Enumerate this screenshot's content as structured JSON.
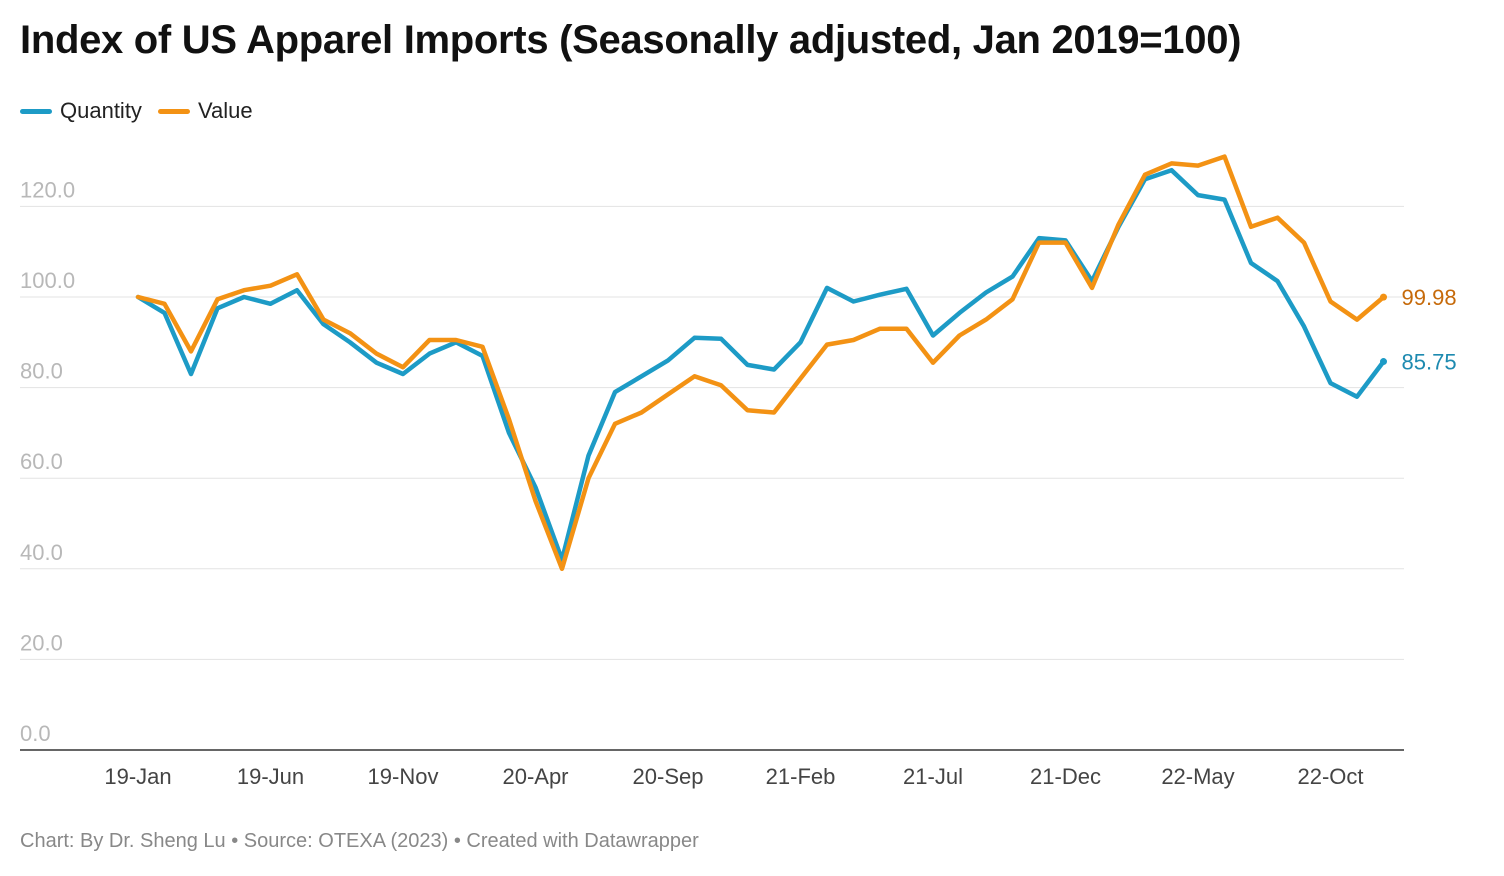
{
  "chart_data": {
    "type": "line",
    "title": "Index of US Apparel Imports (Seasonally adjusted, Jan 2019=100)",
    "xlabel": "",
    "ylabel": "",
    "ylim": [
      0,
      130
    ],
    "yticks": [
      "0.0",
      "20.0",
      "40.0",
      "60.0",
      "80.0",
      "100.0",
      "120.0"
    ],
    "ytick_values": [
      0,
      20,
      40,
      60,
      80,
      100,
      120
    ],
    "xtick_labels": [
      "19-Jan",
      "19-Jun",
      "19-Nov",
      "20-Apr",
      "20-Sep",
      "21-Feb",
      "21-Jul",
      "21-Dec",
      "22-May",
      "22-Oct"
    ],
    "xtick_indices": [
      0,
      5,
      10,
      15,
      20,
      25,
      30,
      35,
      40,
      45
    ],
    "x": [
      "19-Jan",
      "19-Feb",
      "19-Mar",
      "19-Apr",
      "19-May",
      "19-Jun",
      "19-Jul",
      "19-Aug",
      "19-Sep",
      "19-Oct",
      "19-Nov",
      "19-Dec",
      "20-Jan",
      "20-Feb",
      "20-Mar",
      "20-Apr",
      "20-May",
      "20-Jun",
      "20-Jul",
      "20-Aug",
      "20-Sep",
      "20-Oct",
      "20-Nov",
      "20-Dec",
      "21-Jan",
      "21-Feb",
      "21-Mar",
      "21-Apr",
      "21-May",
      "21-Jun",
      "21-Jul",
      "21-Aug",
      "21-Sep",
      "21-Oct",
      "21-Nov",
      "21-Dec",
      "22-Jan",
      "22-Feb",
      "22-Mar",
      "22-Apr",
      "22-May",
      "22-Jun",
      "22-Jul",
      "22-Aug",
      "22-Sep",
      "22-Oct",
      "22-Nov",
      "22-Dec"
    ],
    "series": [
      {
        "name": "Quantity",
        "color": "#1d9bc6",
        "end_label": "85.75",
        "label_color": "#1d8ab0",
        "values": [
          100,
          96.5,
          83,
          97.5,
          100,
          98.5,
          101.5,
          94,
          90,
          85.5,
          83,
          87.5,
          90,
          87,
          70,
          58,
          42,
          65,
          79,
          82.5,
          86,
          91,
          90.8,
          85,
          84,
          90,
          102,
          99,
          100.5,
          101.8,
          91.5,
          96.5,
          101,
          104.5,
          113,
          112.5,
          103.5,
          115.5,
          126,
          128,
          122.5,
          121.5,
          107.5,
          103.5,
          93.5,
          81,
          78,
          85.75
        ]
      },
      {
        "name": "Value",
        "color": "#f39214",
        "end_label": "99.98",
        "label_color": "#c66a0a",
        "values": [
          100,
          98.5,
          88,
          99.5,
          101.5,
          102.5,
          105,
          95,
          92,
          87.5,
          84.5,
          90.5,
          90.5,
          89,
          73,
          55,
          40,
          60,
          72,
          74.5,
          78.5,
          82.5,
          80.5,
          75,
          74.5,
          82,
          89.5,
          90.5,
          93,
          93,
          85.5,
          91.5,
          95,
          99.5,
          112,
          112,
          102,
          116,
          127,
          129.5,
          129,
          131,
          115.5,
          117.5,
          112,
          99,
          95,
          99.98
        ]
      }
    ]
  },
  "footer": "Chart: By Dr. Sheng Lu • Source: OTEXA (2023) • Created with Datawrapper"
}
